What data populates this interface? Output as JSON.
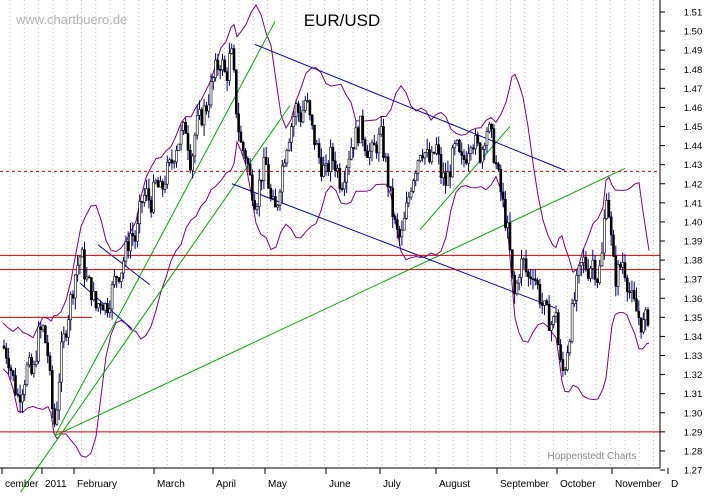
{
  "chart_data": {
    "type": "candlestick",
    "title": "EUR/USD",
    "watermark": "www.chartbuero.de",
    "credit": "Hoppenstedt Charts",
    "yaxis": {
      "side": "right",
      "ylim": [
        1.265,
        1.515
      ],
      "ticks": [
        "1.27",
        "1.28",
        "1.29",
        "1.30",
        "1.31",
        "1.32",
        "1.33",
        "1.34",
        "1.35",
        "1.36",
        "1.37",
        "1.38",
        "1.39",
        "1.40",
        "1.41",
        "1.42",
        "1.43",
        "1.44",
        "1.45",
        "1.46",
        "1.47",
        "1.48",
        "1.49",
        "1.50",
        "1.51"
      ]
    },
    "xaxis": {
      "labels": [
        "cember",
        "2011",
        "February",
        "March",
        "April",
        "May",
        "June",
        "July",
        "August",
        "September",
        "October",
        "November",
        "D"
      ]
    },
    "grid": "dotted vertical",
    "colors": {
      "candles": "#000080",
      "bollinger": "#800080",
      "channel": "#0000cc",
      "trend": "#00aa00",
      "support": "#dd0000"
    },
    "horizontal_levels": [
      {
        "value": 1.4265,
        "style": "dashed"
      },
      {
        "value": 1.3825,
        "style": "solid"
      },
      {
        "value": 1.375,
        "style": "solid"
      },
      {
        "value": 1.35,
        "style": "solid"
      },
      {
        "value": 1.29,
        "style": "solid"
      }
    ],
    "price_path": [
      {
        "d": 0,
        "c": 1.335
      },
      {
        "d": 5,
        "c": 1.33
      },
      {
        "d": 10,
        "c": 1.318
      },
      {
        "d": 15,
        "c": 1.308
      },
      {
        "d": 20,
        "c": 1.315
      },
      {
        "d": 25,
        "c": 1.325
      },
      {
        "d": 30,
        "c": 1.318
      },
      {
        "d": 35,
        "c": 1.34
      },
      {
        "d": 40,
        "c": 1.344
      },
      {
        "d": 45,
        "c": 1.33
      },
      {
        "d": 48,
        "c": 1.31
      },
      {
        "d": 51,
        "c": 1.292
      },
      {
        "d": 54,
        "c": 1.305
      },
      {
        "d": 58,
        "c": 1.33
      },
      {
        "d": 63,
        "c": 1.345
      },
      {
        "d": 68,
        "c": 1.36
      },
      {
        "d": 73,
        "c": 1.375
      },
      {
        "d": 78,
        "c": 1.384
      },
      {
        "d": 83,
        "c": 1.37
      },
      {
        "d": 88,
        "c": 1.365
      },
      {
        "d": 93,
        "c": 1.355
      },
      {
        "d": 98,
        "c": 1.36
      },
      {
        "d": 103,
        "c": 1.355
      },
      {
        "d": 108,
        "c": 1.362
      },
      {
        "d": 113,
        "c": 1.372
      },
      {
        "d": 118,
        "c": 1.375
      },
      {
        "d": 123,
        "c": 1.385
      },
      {
        "d": 128,
        "c": 1.395
      },
      {
        "d": 133,
        "c": 1.39
      },
      {
        "d": 138,
        "c": 1.41
      },
      {
        "d": 143,
        "c": 1.415
      },
      {
        "d": 148,
        "c": 1.41
      },
      {
        "d": 153,
        "c": 1.42
      },
      {
        "d": 158,
        "c": 1.415
      },
      {
        "d": 163,
        "c": 1.425
      },
      {
        "d": 168,
        "c": 1.43
      },
      {
        "d": 173,
        "c": 1.44
      },
      {
        "d": 178,
        "c": 1.445
      },
      {
        "d": 183,
        "c": 1.45
      },
      {
        "d": 188,
        "c": 1.43
      },
      {
        "d": 193,
        "c": 1.45
      },
      {
        "d": 198,
        "c": 1.455
      },
      {
        "d": 203,
        "c": 1.46
      },
      {
        "d": 208,
        "c": 1.47
      },
      {
        "d": 213,
        "c": 1.48
      },
      {
        "d": 218,
        "c": 1.485
      },
      {
        "d": 223,
        "c": 1.475
      },
      {
        "d": 228,
        "c": 1.49
      },
      {
        "d": 231,
        "c": 1.475
      },
      {
        "d": 234,
        "c": 1.455
      },
      {
        "d": 238,
        "c": 1.44
      },
      {
        "d": 243,
        "c": 1.435
      },
      {
        "d": 248,
        "c": 1.42
      },
      {
        "d": 253,
        "c": 1.41
      },
      {
        "d": 258,
        "c": 1.425
      },
      {
        "d": 263,
        "c": 1.43
      },
      {
        "d": 268,
        "c": 1.41
      },
      {
        "d": 273,
        "c": 1.405
      },
      {
        "d": 278,
        "c": 1.425
      },
      {
        "d": 283,
        "c": 1.44
      },
      {
        "d": 288,
        "c": 1.45
      },
      {
        "d": 293,
        "c": 1.46
      },
      {
        "d": 298,
        "c": 1.455
      },
      {
        "d": 303,
        "c": 1.465
      },
      {
        "d": 308,
        "c": 1.45
      },
      {
        "d": 313,
        "c": 1.44
      },
      {
        "d": 318,
        "c": 1.43
      },
      {
        "d": 323,
        "c": 1.425
      },
      {
        "d": 328,
        "c": 1.435
      },
      {
        "d": 333,
        "c": 1.43
      },
      {
        "d": 338,
        "c": 1.42
      },
      {
        "d": 343,
        "c": 1.43
      },
      {
        "d": 348,
        "c": 1.44
      },
      {
        "d": 353,
        "c": 1.445
      },
      {
        "d": 358,
        "c": 1.45
      },
      {
        "d": 363,
        "c": 1.44
      },
      {
        "d": 368,
        "c": 1.435
      },
      {
        "d": 373,
        "c": 1.44
      },
      {
        "d": 378,
        "c": 1.445
      },
      {
        "d": 383,
        "c": 1.43
      },
      {
        "d": 388,
        "c": 1.41
      },
      {
        "d": 393,
        "c": 1.395
      },
      {
        "d": 398,
        "c": 1.39
      },
      {
        "d": 403,
        "c": 1.405
      },
      {
        "d": 408,
        "c": 1.42
      },
      {
        "d": 413,
        "c": 1.43
      },
      {
        "d": 418,
        "c": 1.44
      },
      {
        "d": 423,
        "c": 1.435
      },
      {
        "d": 428,
        "c": 1.43
      },
      {
        "d": 433,
        "c": 1.44
      },
      {
        "d": 438,
        "c": 1.425
      },
      {
        "d": 443,
        "c": 1.42
      },
      {
        "d": 448,
        "c": 1.43
      },
      {
        "d": 453,
        "c": 1.44
      },
      {
        "d": 458,
        "c": 1.43
      },
      {
        "d": 463,
        "c": 1.435
      },
      {
        "d": 468,
        "c": 1.445
      },
      {
        "d": 473,
        "c": 1.44
      },
      {
        "d": 478,
        "c": 1.435
      },
      {
        "d": 483,
        "c": 1.45
      },
      {
        "d": 488,
        "c": 1.445
      },
      {
        "d": 493,
        "c": 1.43
      },
      {
        "d": 498,
        "c": 1.415
      },
      {
        "d": 503,
        "c": 1.4
      },
      {
        "d": 506,
        "c": 1.39
      },
      {
        "d": 509,
        "c": 1.37
      },
      {
        "d": 512,
        "c": 1.36
      },
      {
        "d": 516,
        "c": 1.375
      },
      {
        "d": 520,
        "c": 1.38
      },
      {
        "d": 525,
        "c": 1.37
      },
      {
        "d": 530,
        "c": 1.375
      },
      {
        "d": 535,
        "c": 1.365
      },
      {
        "d": 540,
        "c": 1.355
      },
      {
        "d": 545,
        "c": 1.35
      },
      {
        "d": 550,
        "c": 1.345
      },
      {
        "d": 553,
        "c": 1.355
      },
      {
        "d": 556,
        "c": 1.33
      },
      {
        "d": 559,
        "c": 1.32
      },
      {
        "d": 562,
        "c": 1.325
      },
      {
        "d": 566,
        "c": 1.34
      },
      {
        "d": 570,
        "c": 1.355
      },
      {
        "d": 575,
        "c": 1.37
      },
      {
        "d": 580,
        "c": 1.38
      },
      {
        "d": 585,
        "c": 1.375
      },
      {
        "d": 590,
        "c": 1.38
      },
      {
        "d": 595,
        "c": 1.37
      },
      {
        "d": 600,
        "c": 1.385
      },
      {
        "d": 603,
        "c": 1.42
      },
      {
        "d": 606,
        "c": 1.405
      },
      {
        "d": 609,
        "c": 1.385
      },
      {
        "d": 612,
        "c": 1.37
      },
      {
        "d": 616,
        "c": 1.375
      },
      {
        "d": 620,
        "c": 1.38
      },
      {
        "d": 624,
        "c": 1.37
      },
      {
        "d": 628,
        "c": 1.36
      },
      {
        "d": 632,
        "c": 1.355
      },
      {
        "d": 636,
        "c": 1.35
      },
      {
        "d": 640,
        "c": 1.345
      },
      {
        "d": 644,
        "c": 1.35
      },
      {
        "d": 646,
        "c": 1.352
      }
    ]
  }
}
